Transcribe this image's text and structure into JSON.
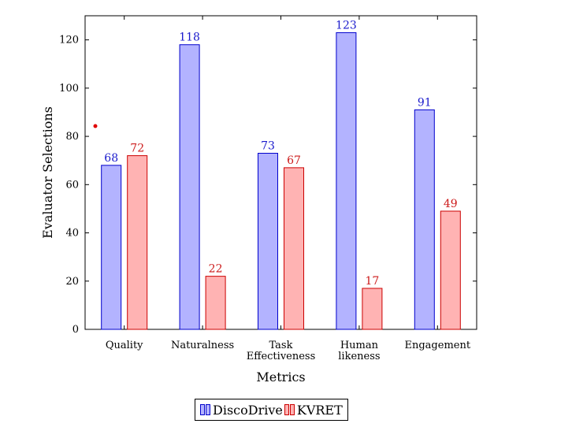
{
  "chart_data": {
    "type": "bar",
    "categories": [
      [
        "Quality"
      ],
      [
        "Naturalness"
      ],
      [
        "Task",
        "Effectiveness"
      ],
      [
        "Human",
        "likeness"
      ],
      [
        "Engagement"
      ]
    ],
    "series": [
      {
        "name": "DiscoDrive",
        "values": [
          68,
          118,
          73,
          123,
          91
        ],
        "fill": "#b3b3ff",
        "stroke": "#0000cc",
        "label_color": "#1a1acc"
      },
      {
        "name": "KVRET",
        "values": [
          72,
          22,
          67,
          17,
          49
        ],
        "fill": "#ffb3b3",
        "stroke": "#cc0000",
        "label_color": "#cc1a1a"
      }
    ],
    "xlabel": "Metrics",
    "ylabel": "Evaluator Selections",
    "ylim": [
      0,
      130
    ],
    "yticks": [
      0,
      20,
      40,
      60,
      80,
      100,
      120
    ],
    "grid": false,
    "legend_position": "bottom-center"
  },
  "annotation_dot_color": "#e00000"
}
